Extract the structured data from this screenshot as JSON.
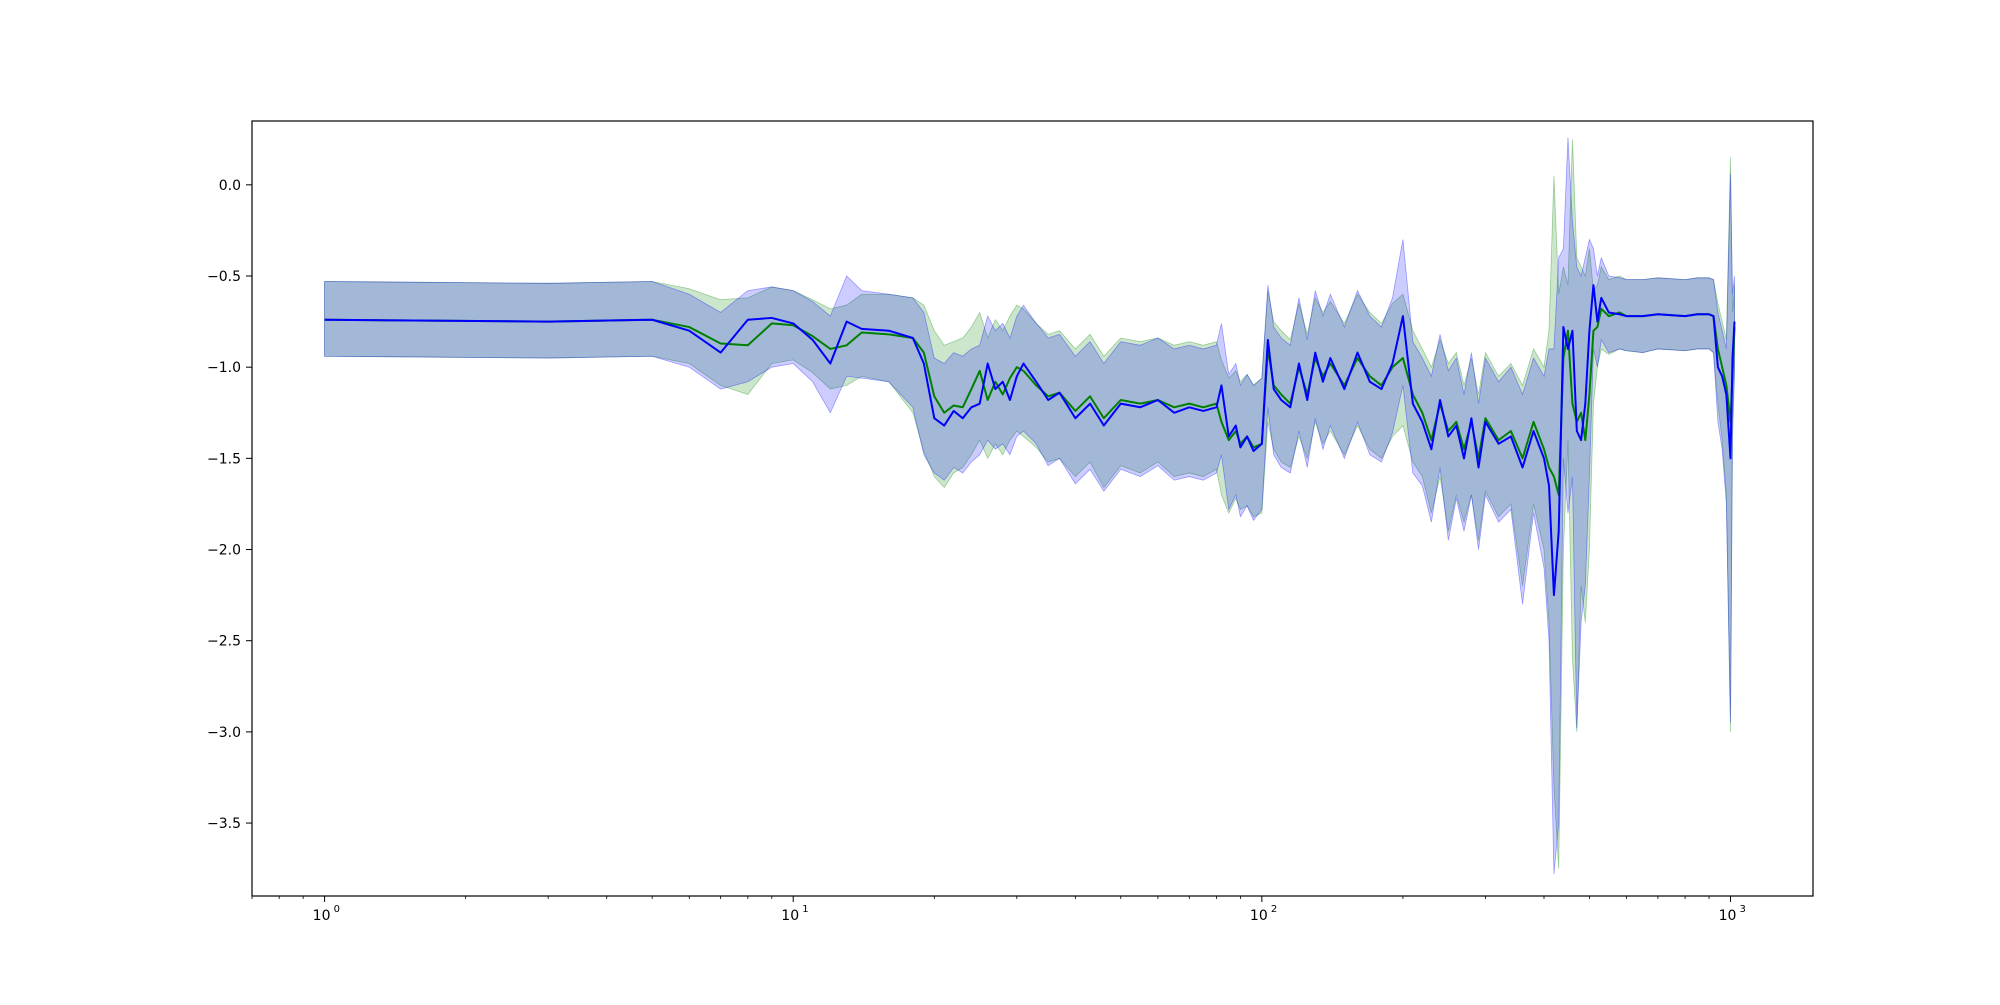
{
  "chart_data": {
    "type": "line",
    "title": "",
    "xlabel": "",
    "ylabel": "",
    "xscale": "log",
    "xlim": [
      0.7,
      1500
    ],
    "ylim": [
      -3.9,
      0.35
    ],
    "grid": false,
    "legend": "none",
    "x_ticks": [
      {
        "value": 1,
        "label": "10",
        "exp": "0"
      },
      {
        "value": 10,
        "label": "10",
        "exp": "1"
      },
      {
        "value": 100,
        "label": "10",
        "exp": "2"
      },
      {
        "value": 1000,
        "label": "10",
        "exp": "3"
      }
    ],
    "y_ticks": [
      {
        "value": 0.0,
        "label": "0.0"
      },
      {
        "value": -0.5,
        "label": "−0.5"
      },
      {
        "value": -1.0,
        "label": "−1.0"
      },
      {
        "value": -1.5,
        "label": "−1.5"
      },
      {
        "value": -2.0,
        "label": "−2.0"
      },
      {
        "value": -2.5,
        "label": "−2.5"
      },
      {
        "value": -3.0,
        "label": "−3.0"
      },
      {
        "value": -3.5,
        "label": "−3.5"
      }
    ],
    "series": [
      {
        "color": "#008000",
        "band_color": "#008000",
        "band_opacity": 0.2,
        "x": [
          1,
          3,
          5,
          6,
          7,
          8,
          9,
          10,
          11,
          12,
          13,
          14,
          16,
          18,
          19,
          20,
          21,
          22,
          23,
          24,
          25,
          26,
          27,
          28,
          29,
          30,
          31,
          33,
          35,
          37,
          40,
          43,
          46,
          50,
          55,
          60,
          65,
          70,
          75,
          80,
          82,
          85,
          88,
          90,
          93,
          96,
          100,
          103,
          106,
          110,
          115,
          120,
          125,
          130,
          135,
          140,
          150,
          160,
          170,
          180,
          190,
          200,
          210,
          220,
          230,
          240,
          250,
          260,
          270,
          280,
          290,
          300,
          320,
          340,
          360,
          380,
          400,
          410,
          420,
          430,
          440,
          450,
          460,
          470,
          480,
          490,
          500,
          510,
          520,
          530,
          550,
          580,
          600,
          650,
          700,
          800,
          850,
          900,
          920,
          940,
          960,
          980,
          1000,
          1010,
          1020
        ],
        "y": [
          -0.74,
          -0.75,
          -0.74,
          -0.78,
          -0.87,
          -0.88,
          -0.76,
          -0.77,
          -0.83,
          -0.9,
          -0.88,
          -0.81,
          -0.82,
          -0.84,
          -0.92,
          -1.16,
          -1.25,
          -1.21,
          -1.22,
          -1.12,
          -1.02,
          -1.18,
          -1.08,
          -1.15,
          -1.06,
          -1.0,
          -1.02,
          -1.1,
          -1.16,
          -1.14,
          -1.24,
          -1.16,
          -1.28,
          -1.18,
          -1.2,
          -1.18,
          -1.22,
          -1.2,
          -1.22,
          -1.2,
          -1.3,
          -1.4,
          -1.35,
          -1.42,
          -1.38,
          -1.44,
          -1.42,
          -0.9,
          -1.1,
          -1.15,
          -1.2,
          -1.0,
          -1.15,
          -0.95,
          -1.05,
          -0.98,
          -1.1,
          -0.95,
          -1.05,
          -1.1,
          -1.0,
          -0.95,
          -1.15,
          -1.25,
          -1.4,
          -1.2,
          -1.35,
          -1.3,
          -1.45,
          -1.3,
          -1.5,
          -1.28,
          -1.4,
          -1.35,
          -1.5,
          -1.3,
          -1.45,
          -1.55,
          -1.6,
          -1.7,
          -0.95,
          -0.8,
          -1.2,
          -1.3,
          -1.25,
          -1.4,
          -1.15,
          -0.8,
          -0.78,
          -0.68,
          -0.72,
          -0.7,
          -0.72,
          -0.72,
          -0.71,
          -0.72,
          -0.71,
          -0.71,
          -0.72,
          -0.9,
          -1.0,
          -1.1,
          -1.3,
          -1.05,
          -0.78
        ],
        "lo": [
          -0.94,
          -0.95,
          -0.94,
          -0.98,
          -1.1,
          -1.15,
          -0.98,
          -0.96,
          -1.03,
          -1.12,
          -1.1,
          -1.05,
          -1.08,
          -1.25,
          -1.46,
          -1.6,
          -1.66,
          -1.58,
          -1.55,
          -1.48,
          -1.4,
          -1.5,
          -1.42,
          -1.48,
          -1.4,
          -1.35,
          -1.38,
          -1.44,
          -1.52,
          -1.5,
          -1.6,
          -1.52,
          -1.66,
          -1.54,
          -1.58,
          -1.52,
          -1.6,
          -1.58,
          -1.6,
          -1.56,
          -1.7,
          -1.8,
          -1.72,
          -1.78,
          -1.76,
          -1.82,
          -1.8,
          -1.3,
          -1.45,
          -1.52,
          -1.55,
          -1.38,
          -1.5,
          -1.3,
          -1.42,
          -1.35,
          -1.48,
          -1.32,
          -1.45,
          -1.5,
          -1.38,
          -1.32,
          -1.52,
          -1.6,
          -1.8,
          -1.6,
          -1.9,
          -1.7,
          -1.85,
          -1.7,
          -1.95,
          -1.68,
          -1.82,
          -1.75,
          -2.2,
          -1.75,
          -2.0,
          -2.4,
          -3.3,
          -3.75,
          -2.0,
          -1.4,
          -2.6,
          -3.0,
          -2.2,
          -2.4,
          -2.0,
          -1.2,
          -1.0,
          -0.9,
          -0.93,
          -0.9,
          -0.91,
          -0.92,
          -0.9,
          -0.91,
          -0.9,
          -0.9,
          -0.92,
          -1.2,
          -1.4,
          -1.7,
          -3.0,
          -1.4,
          -1.05
        ],
        "hi": [
          -0.53,
          -0.54,
          -0.53,
          -0.57,
          -0.63,
          -0.62,
          -0.56,
          -0.58,
          -0.63,
          -0.68,
          -0.66,
          -0.6,
          -0.6,
          -0.62,
          -0.66,
          -0.8,
          -0.88,
          -0.86,
          -0.84,
          -0.78,
          -0.7,
          -0.84,
          -0.74,
          -0.8,
          -0.72,
          -0.66,
          -0.68,
          -0.76,
          -0.82,
          -0.8,
          -0.9,
          -0.82,
          -0.94,
          -0.84,
          -0.86,
          -0.84,
          -0.88,
          -0.86,
          -0.88,
          -0.86,
          -0.96,
          -1.06,
          -1.02,
          -1.08,
          -1.04,
          -1.1,
          -1.06,
          -0.58,
          -0.75,
          -0.8,
          -0.85,
          -0.65,
          -0.82,
          -0.62,
          -0.7,
          -0.64,
          -0.76,
          -0.6,
          -0.7,
          -0.76,
          -0.65,
          -0.6,
          -0.8,
          -0.9,
          -1.0,
          -0.85,
          -0.98,
          -0.92,
          -1.1,
          -0.95,
          -1.15,
          -0.92,
          -1.05,
          -0.98,
          -1.1,
          -0.9,
          -1.0,
          -0.8,
          0.05,
          -0.6,
          -0.45,
          -0.55,
          0.25,
          -0.4,
          -0.45,
          -0.5,
          -0.35,
          -0.58,
          -0.55,
          -0.45,
          -0.52,
          -0.5,
          -0.52,
          -0.52,
          -0.51,
          -0.52,
          -0.51,
          -0.51,
          -0.52,
          -0.65,
          -0.75,
          -0.85,
          0.15,
          -0.7,
          -0.55
        ]
      },
      {
        "color": "#0000ff",
        "band_color": "#0000ff",
        "band_opacity": 0.2,
        "x": [
          1,
          3,
          5,
          6,
          7,
          8,
          9,
          10,
          11,
          12,
          13,
          14,
          16,
          18,
          19,
          20,
          21,
          22,
          23,
          24,
          25,
          26,
          27,
          28,
          29,
          30,
          31,
          33,
          35,
          37,
          40,
          43,
          46,
          50,
          55,
          60,
          65,
          70,
          75,
          80,
          82,
          85,
          88,
          90,
          93,
          96,
          100,
          103,
          106,
          110,
          115,
          120,
          125,
          130,
          135,
          140,
          150,
          160,
          170,
          180,
          190,
          200,
          210,
          220,
          230,
          240,
          250,
          260,
          270,
          280,
          290,
          300,
          320,
          340,
          360,
          380,
          400,
          410,
          420,
          430,
          440,
          450,
          460,
          470,
          480,
          490,
          500,
          510,
          520,
          530,
          550,
          580,
          600,
          650,
          700,
          800,
          850,
          900,
          920,
          940,
          960,
          980,
          1000,
          1010,
          1020
        ],
        "y": [
          -0.74,
          -0.75,
          -0.74,
          -0.8,
          -0.92,
          -0.74,
          -0.73,
          -0.76,
          -0.85,
          -0.98,
          -0.75,
          -0.79,
          -0.8,
          -0.84,
          -0.98,
          -1.28,
          -1.32,
          -1.24,
          -1.28,
          -1.22,
          -1.2,
          -0.98,
          -1.12,
          -1.08,
          -1.18,
          -1.05,
          -0.98,
          -1.08,
          -1.18,
          -1.14,
          -1.28,
          -1.2,
          -1.32,
          -1.2,
          -1.22,
          -1.18,
          -1.25,
          -1.22,
          -1.24,
          -1.22,
          -1.1,
          -1.38,
          -1.32,
          -1.44,
          -1.38,
          -1.46,
          -1.42,
          -0.85,
          -1.12,
          -1.18,
          -1.22,
          -0.98,
          -1.18,
          -0.92,
          -1.08,
          -0.95,
          -1.12,
          -0.92,
          -1.08,
          -1.12,
          -0.98,
          -0.72,
          -1.2,
          -1.3,
          -1.45,
          -1.18,
          -1.38,
          -1.32,
          -1.5,
          -1.28,
          -1.55,
          -1.3,
          -1.42,
          -1.38,
          -1.55,
          -1.35,
          -1.5,
          -1.65,
          -2.25,
          -1.9,
          -0.78,
          -0.9,
          -0.8,
          -1.35,
          -1.4,
          -1.2,
          -0.8,
          -0.55,
          -0.75,
          -0.62,
          -0.7,
          -0.71,
          -0.72,
          -0.72,
          -0.71,
          -0.72,
          -0.71,
          -0.71,
          -0.72,
          -1.0,
          -1.05,
          -1.15,
          -1.5,
          -0.95,
          -0.75
        ],
        "lo": [
          -0.94,
          -0.95,
          -0.94,
          -1.0,
          -1.12,
          -1.08,
          -1.0,
          -0.98,
          -1.08,
          -1.25,
          -1.05,
          -1.06,
          -1.08,
          -1.22,
          -1.48,
          -1.58,
          -1.62,
          -1.55,
          -1.58,
          -1.52,
          -1.48,
          -1.4,
          -1.45,
          -1.42,
          -1.48,
          -1.38,
          -1.35,
          -1.42,
          -1.54,
          -1.5,
          -1.64,
          -1.56,
          -1.68,
          -1.56,
          -1.6,
          -1.54,
          -1.62,
          -1.6,
          -1.62,
          -1.58,
          -1.48,
          -1.78,
          -1.7,
          -1.82,
          -1.76,
          -1.84,
          -1.78,
          -1.22,
          -1.48,
          -1.55,
          -1.58,
          -1.35,
          -1.55,
          -1.28,
          -1.45,
          -1.32,
          -1.5,
          -1.3,
          -1.48,
          -1.52,
          -1.36,
          -1.1,
          -1.58,
          -1.65,
          -1.85,
          -1.55,
          -1.95,
          -1.72,
          -1.9,
          -1.7,
          -2.0,
          -1.7,
          -1.85,
          -1.78,
          -2.3,
          -1.8,
          -2.1,
          -2.5,
          -3.78,
          -3.5,
          -1.5,
          -1.8,
          -1.6,
          -2.98,
          -2.4,
          -2.2,
          -1.6,
          -0.9,
          -1.0,
          -0.85,
          -0.92,
          -0.9,
          -0.91,
          -0.92,
          -0.9,
          -0.91,
          -0.9,
          -0.9,
          -0.92,
          -1.3,
          -1.45,
          -1.75,
          -2.95,
          -1.3,
          -1.0
        ],
        "hi": [
          -0.53,
          -0.54,
          -0.53,
          -0.6,
          -0.7,
          -0.58,
          -0.56,
          -0.58,
          -0.64,
          -0.72,
          -0.5,
          -0.58,
          -0.6,
          -0.62,
          -0.7,
          -0.95,
          -0.98,
          -0.92,
          -0.94,
          -0.9,
          -0.88,
          -0.72,
          -0.8,
          -0.76,
          -0.84,
          -0.72,
          -0.66,
          -0.76,
          -0.84,
          -0.82,
          -0.94,
          -0.86,
          -0.98,
          -0.86,
          -0.88,
          -0.84,
          -0.9,
          -0.88,
          -0.9,
          -0.88,
          -0.76,
          -1.04,
          -0.98,
          -1.1,
          -1.04,
          -1.1,
          -1.06,
          -0.55,
          -0.78,
          -0.84,
          -0.88,
          -0.62,
          -0.85,
          -0.58,
          -0.72,
          -0.6,
          -0.78,
          -0.58,
          -0.72,
          -0.78,
          -0.62,
          -0.3,
          -0.86,
          -0.95,
          -1.05,
          -0.82,
          -1.02,
          -0.95,
          -1.15,
          -0.92,
          -1.2,
          -0.95,
          -1.08,
          -1.0,
          -1.15,
          -0.95,
          -1.05,
          -0.9,
          -0.9,
          -0.4,
          -0.35,
          0.26,
          -0.2,
          -0.45,
          -0.5,
          -0.4,
          -0.3,
          -0.35,
          -0.5,
          -0.4,
          -0.5,
          -0.51,
          -0.52,
          -0.52,
          -0.51,
          -0.52,
          -0.51,
          -0.51,
          -0.52,
          -0.7,
          -0.8,
          -0.9,
          0.06,
          -0.6,
          -0.5
        ]
      }
    ]
  }
}
